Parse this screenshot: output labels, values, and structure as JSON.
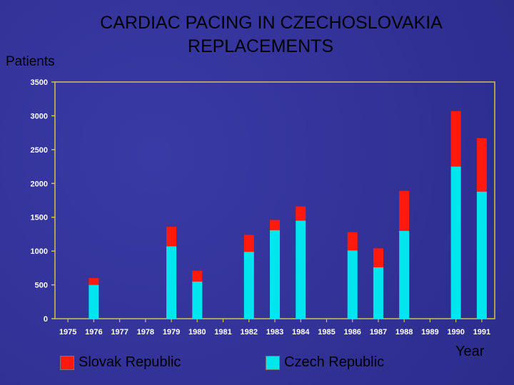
{
  "chart_data": {
    "type": "bar",
    "stacked": true,
    "title": "CARDIAC PACING IN CZECHOSLOVAKIA",
    "subtitle": "REPLACEMENTS",
    "ylabel": "Patients",
    "xlabel": "Year",
    "ylim": [
      0,
      3500
    ],
    "yticks": [
      0,
      500,
      1000,
      1500,
      2000,
      2500,
      3000,
      3500
    ],
    "categories": [
      "1975",
      "1976",
      "1977",
      "1978",
      "1979",
      "1980",
      "1981",
      "1982",
      "1983",
      "1984",
      "1985",
      "1986",
      "1987",
      "1988",
      "1989",
      "1990",
      "1991"
    ],
    "series": [
      {
        "name": "Czech Republic",
        "color": "#00e5ee",
        "values": [
          0,
          500,
          0,
          0,
          1070,
          550,
          0,
          990,
          1310,
          1450,
          0,
          1010,
          760,
          1300,
          0,
          2250,
          1880
        ]
      },
      {
        "name": "Slovak Republic",
        "color": "#ff1a0d",
        "values": [
          0,
          100,
          0,
          0,
          290,
          160,
          0,
          250,
          150,
          210,
          0,
          270,
          280,
          590,
          0,
          820,
          790
        ]
      }
    ],
    "legend_position": "bottom",
    "grid": false,
    "frame_color": "#d4c24a"
  }
}
